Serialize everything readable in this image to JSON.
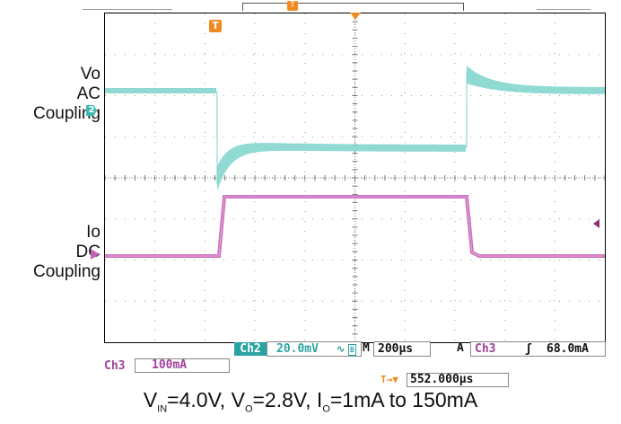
{
  "labels": {
    "vo_line1": "Vo",
    "vo_line2": "AC",
    "vo_line3": "Coupling",
    "io_line1": "Io",
    "io_line2": "DC",
    "io_line3": "Coupling"
  },
  "markers": {
    "trigger_t": "T",
    "ch2_ground": "2",
    "ch3_ground": "3"
  },
  "status_bar": {
    "ch2_name": "Ch2",
    "ch2_scale": "20.0mV",
    "ch2_coupling_symbol": "∿",
    "ch2_bw_symbol": "B",
    "timebase_prefix": "M",
    "timebase": "200µs",
    "trigger_mode": "A",
    "trigger_source": "Ch3",
    "trigger_slope_symbol": "ʃ",
    "trigger_level": "68.0mA",
    "ch3_name": "Ch3",
    "ch3_scale": "100mA",
    "trigger_position_symbol": "T→▼",
    "trigger_position": "552.000µs"
  },
  "caption": {
    "v": "V",
    "in_sub": "IN",
    "part1": "=4.0V, V",
    "o_sub1": "O",
    "part2": "=2.8V, I",
    "o_sub2": "O",
    "part3": "=1mA to 150mA"
  },
  "colors": {
    "ch2": "#7ed3cc",
    "ch3": "#c65fb6",
    "marker_orange": "#f08a1e",
    "grid": "#9a9a9a"
  }
}
